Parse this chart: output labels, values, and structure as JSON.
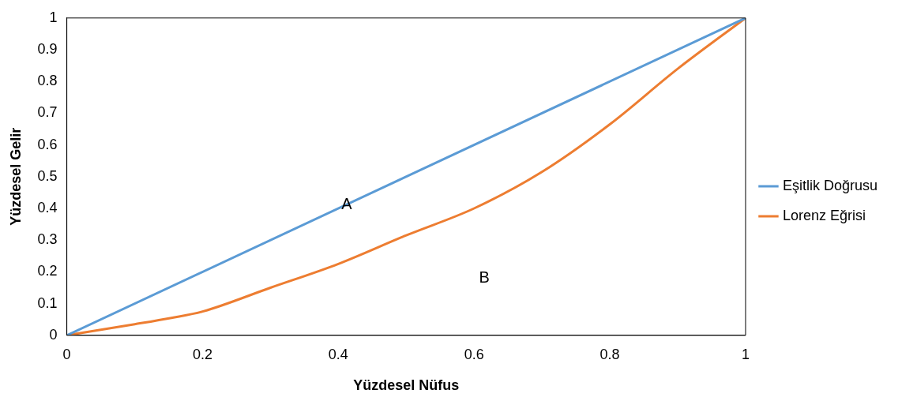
{
  "chart_data": {
    "type": "line",
    "xlabel": "Yüzdesel Nüfus",
    "ylabel": "Yüzdesel Gelir",
    "xlim": [
      0,
      1
    ],
    "xticks": [
      0,
      0.2,
      0.4,
      0.6,
      0.8,
      1
    ],
    "ylim": [
      0,
      1
    ],
    "yticks": [
      0,
      0.1,
      0.2,
      0.3,
      0.4,
      0.5,
      0.6,
      0.7,
      0.8,
      0.9,
      1
    ],
    "grid": false,
    "legend": "right",
    "marker": "none",
    "line_style": "solid",
    "series": [
      {
        "name": "Eşitlik Doğrusu",
        "color": "#5b9bd5",
        "x": [
          0,
          1
        ],
        "values": [
          0,
          1
        ]
      },
      {
        "name": "Lorenz Eğrisi",
        "color": "#ed7d31",
        "x": [
          0,
          0.1,
          0.154,
          0.2,
          0.3,
          0.4,
          0.5,
          0.6,
          0.7,
          0.8,
          0.9,
          1
        ],
        "values": [
          0,
          0.035,
          0.055,
          0.075,
          0.15,
          0.225,
          0.315,
          0.4,
          0.515,
          0.665,
          0.84,
          1
        ]
      }
    ],
    "annotations": [
      "A",
      "B"
    ]
  }
}
